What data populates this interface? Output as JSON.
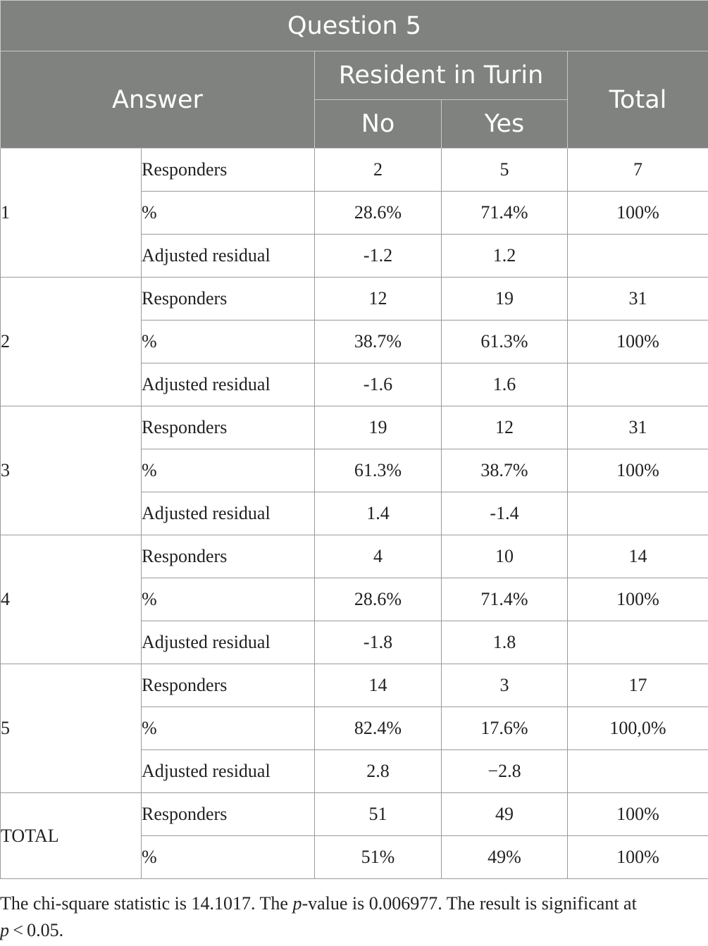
{
  "table": {
    "title": "Question 5",
    "header": {
      "answer": "Answer",
      "group": "Resident in Turin",
      "no": "No",
      "yes": "Yes",
      "total": "Total"
    },
    "rows": [
      {
        "answer": "1",
        "responders": {
          "label": "Responders",
          "no": "2",
          "yes": "5",
          "total": "7"
        },
        "percent": {
          "label": "%",
          "no": "28.6%",
          "yes": "71.4%",
          "total": "100%"
        },
        "residual": {
          "label": "Adjusted residual",
          "no": "-1.2",
          "yes": "1.2"
        }
      },
      {
        "answer": "2",
        "responders": {
          "label": "Responders",
          "no": "12",
          "yes": "19",
          "total": "31"
        },
        "percent": {
          "label": "%",
          "no": "38.7%",
          "yes": "61.3%",
          "total": "100%"
        },
        "residual": {
          "label": "Adjusted residual",
          "no": "-1.6",
          "yes": "1.6"
        }
      },
      {
        "answer": "3",
        "responders": {
          "label": "Responders",
          "no": "19",
          "yes": "12",
          "total": "31"
        },
        "percent": {
          "label": "%",
          "no": "61.3%",
          "yes": "38.7%",
          "total": "100%"
        },
        "residual": {
          "label": "Adjusted residual",
          "no": "1.4",
          "yes": "-1.4"
        }
      },
      {
        "answer": "4",
        "responders": {
          "label": "Responders",
          "no": "4",
          "yes": "10",
          "total": "14"
        },
        "percent": {
          "label": "%",
          "no": "28.6%",
          "yes": "71.4%",
          "total": "100%"
        },
        "residual": {
          "label": "Adjusted residual",
          "no": "-1.8",
          "yes": "1.8"
        }
      },
      {
        "answer": "5",
        "responders": {
          "label": "Responders",
          "no": "14",
          "yes": "3",
          "total": "17"
        },
        "percent": {
          "label": "%",
          "no": "82.4%",
          "yes": "17.6%",
          "total": "100,0%"
        },
        "residual": {
          "label": "Adjusted residual",
          "no": "2.8",
          "yes": "−2.8"
        }
      }
    ],
    "total_row": {
      "answer": "TOTAL",
      "responders": {
        "label": "Responders",
        "no": "51",
        "yes": "49",
        "total": "100%"
      },
      "percent": {
        "label": "%",
        "no": "51%",
        "yes": "49%",
        "total": "100%"
      }
    }
  },
  "footnote": {
    "part1": "The chi-square statistic is 14.1017. The ",
    "p_italic": "p",
    "part2": "-value is 0.006977. The result is significant at ",
    "p_italic_2": "p",
    "part3": " < 0.05."
  }
}
